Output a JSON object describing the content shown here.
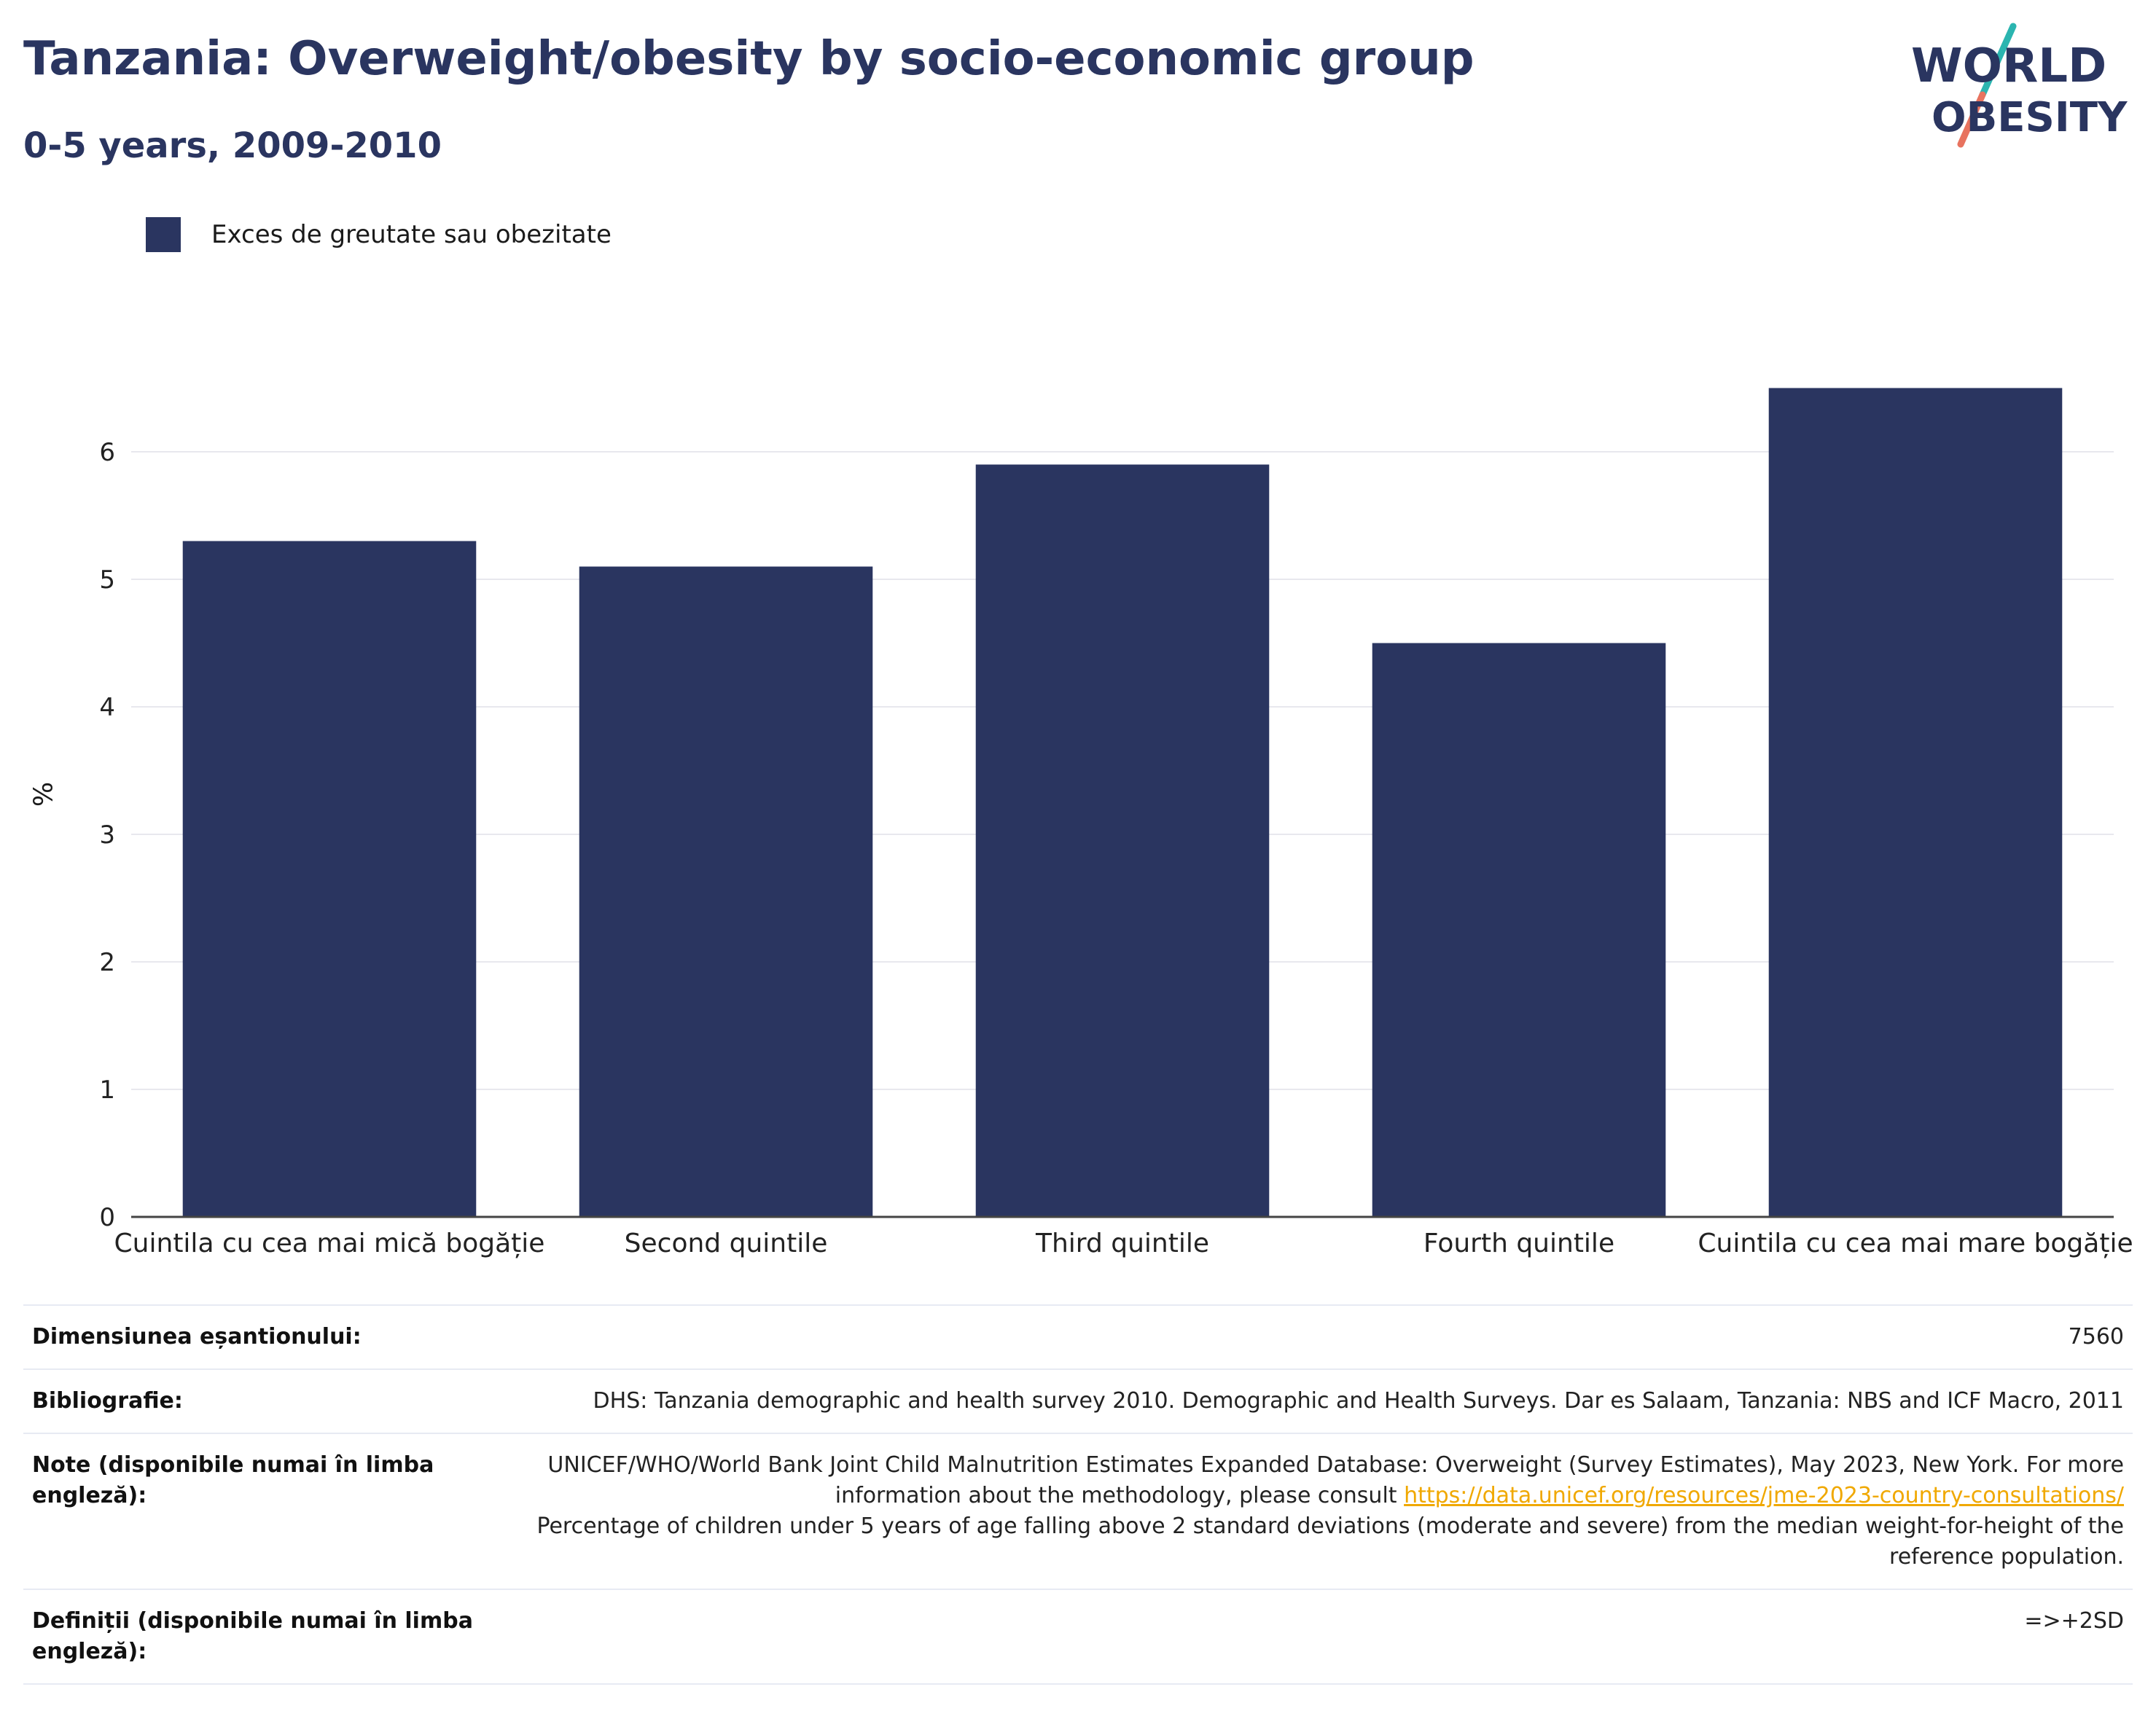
{
  "header": {
    "title": "Tanzania: Overweight/obesity by socio-economic group",
    "subtitle": "0-5 years, 2009-2010"
  },
  "logo": {
    "line1": "WORLD",
    "line2": "OBESITY",
    "colors": {
      "text": "#2a3560",
      "slash_top": "#2bb5b0",
      "slash_bottom": "#e8735f"
    }
  },
  "chart_data": {
    "type": "bar",
    "categories": [
      "Cuintila cu cea mai mică bogăție",
      "Second quintile",
      "Third quintile",
      "Fourth quintile",
      "Cuintila cu cea mai mare bogăție"
    ],
    "series": [
      {
        "name": "Exces de greutate sau obezitate",
        "values": [
          5.3,
          5.1,
          5.9,
          4.5,
          6.5
        ],
        "color": "#2a3560"
      }
    ],
    "xlabel": "",
    "ylabel": "%",
    "ylim": [
      0,
      6.8
    ],
    "yticks": [
      0,
      1,
      2,
      3,
      4,
      5,
      6
    ],
    "grid": true,
    "legend_position": "top-left"
  },
  "info": {
    "sample_size_label": "Dimensiunea eșantionului:",
    "sample_size_value": "7560",
    "bibliography_label": "Bibliografie:",
    "bibliography_value": "DHS: Tanzania demographic and health survey 2010. Demographic and Health Surveys. Dar es Salaam, Tanzania: NBS and ICF Macro, 2011",
    "notes_label": "Note (disponibile numai în limba engleză):",
    "notes_text_before": "UNICEF/WHO/World Bank Joint Child Malnutrition Estimates Expanded Database: Overweight (Survey Estimates), May 2023, New York. For more information about the methodology, please consult",
    "notes_link": "https://data.unicef.org/resources/jme-2023-country-consultations/",
    "notes_text_after": "Percentage of children under 5 years of age falling above 2 standard deviations (moderate and severe) from the median weight-for-height of the reference population.",
    "definitions_label": "Definiții (disponibile numai în limba engleză):",
    "definitions_value": "=>+2SD"
  }
}
